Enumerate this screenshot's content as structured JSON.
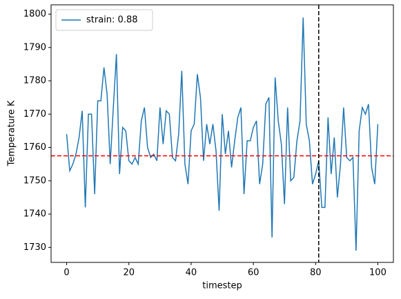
{
  "chart_data": {
    "type": "line",
    "xlabel": "timestep",
    "ylabel": "Temperature K",
    "x": [
      0,
      1,
      2,
      3,
      4,
      5,
      6,
      7,
      8,
      9,
      10,
      11,
      12,
      13,
      14,
      15,
      16,
      17,
      18,
      19,
      20,
      21,
      22,
      23,
      24,
      25,
      26,
      27,
      28,
      29,
      30,
      31,
      32,
      33,
      34,
      35,
      36,
      37,
      38,
      39,
      40,
      41,
      42,
      43,
      44,
      45,
      46,
      47,
      48,
      49,
      50,
      51,
      52,
      53,
      54,
      55,
      56,
      57,
      58,
      59,
      60,
      61,
      62,
      63,
      64,
      65,
      66,
      67,
      68,
      69,
      70,
      71,
      72,
      73,
      74,
      75,
      76,
      77,
      78,
      79,
      80,
      81,
      82,
      83,
      84,
      85,
      86,
      87,
      88,
      89,
      90,
      91,
      92,
      93,
      94,
      95,
      96,
      97,
      98,
      99,
      100
    ],
    "series": [
      {
        "name": "strain: 0.88",
        "color": "#1f77b4",
        "values": [
          1764,
          1753,
          1755,
          1758,
          1763,
          1771,
          1742,
          1770,
          1770,
          1746,
          1774,
          1774,
          1784,
          1776,
          1755,
          1772,
          1788,
          1752,
          1766,
          1765,
          1756,
          1755,
          1757,
          1755,
          1768,
          1772,
          1760,
          1757,
          1758,
          1756,
          1772,
          1761,
          1771,
          1770,
          1757,
          1756,
          1764,
          1783,
          1755,
          1749,
          1765,
          1767,
          1782,
          1775,
          1756,
          1767,
          1761,
          1767,
          1759,
          1741,
          1770,
          1758,
          1765,
          1754,
          1762,
          1769,
          1772,
          1746,
          1762,
          1762,
          1766,
          1768,
          1749,
          1755,
          1773,
          1775,
          1733,
          1781,
          1768,
          1761,
          1743,
          1772,
          1750,
          1751,
          1762,
          1768,
          1799,
          1767,
          1762,
          1749,
          1752,
          1756,
          1742,
          1742,
          1769,
          1752,
          1763,
          1745,
          1755,
          1772,
          1757,
          1756,
          1757,
          1729,
          1765,
          1772,
          1770,
          1773,
          1754,
          1749,
          1767
        ]
      }
    ],
    "hline": {
      "value": 1757.5,
      "color": "#ff0000"
    },
    "vline": {
      "value": 81,
      "color": "#000000"
    },
    "xlim": [
      -5,
      105
    ],
    "ylim": [
      1725.5,
      1802.8
    ],
    "xticks": [
      0,
      20,
      40,
      60,
      80,
      100
    ],
    "yticks": [
      1730,
      1740,
      1750,
      1760,
      1770,
      1780,
      1790,
      1800
    ],
    "legend": "upper left"
  }
}
